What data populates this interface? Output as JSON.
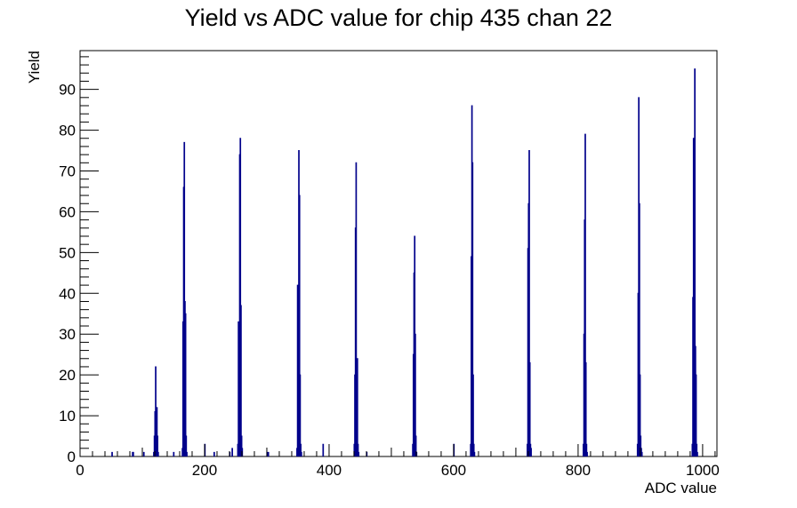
{
  "chart_data": {
    "type": "histogram",
    "title": "Yield vs ADC value for chip 435 chan 22",
    "xlabel": "ADC value",
    "ylabel": "Yield",
    "xlim": [
      0,
      1023
    ],
    "ylim": [
      0,
      99.5
    ],
    "x_ticks": [
      0,
      200,
      400,
      600,
      800,
      1000
    ],
    "y_ticks": [
      0,
      10,
      20,
      30,
      40,
      50,
      60,
      70,
      80,
      90
    ],
    "x_tick_labels": [
      "0",
      "200",
      "400",
      "600",
      "800",
      "1000"
    ],
    "y_tick_labels": [
      "0",
      "10",
      "20",
      "30",
      "40",
      "50",
      "60",
      "70",
      "80",
      "90"
    ],
    "bin_width": 1,
    "line_color": "#00008b",
    "grid": false,
    "legend": "none",
    "bins": [
      {
        "x": 51,
        "y": 1
      },
      {
        "x": 84,
        "y": 1
      },
      {
        "x": 85,
        "y": 1
      },
      {
        "x": 102,
        "y": 1
      },
      {
        "x": 118,
        "y": 1
      },
      {
        "x": 119,
        "y": 5
      },
      {
        "x": 120,
        "y": 11
      },
      {
        "x": 121,
        "y": 22
      },
      {
        "x": 122,
        "y": 8
      },
      {
        "x": 123,
        "y": 12
      },
      {
        "x": 124,
        "y": 5
      },
      {
        "x": 125,
        "y": 1
      },
      {
        "x": 150,
        "y": 1
      },
      {
        "x": 164,
        "y": 2
      },
      {
        "x": 165,
        "y": 33
      },
      {
        "x": 166,
        "y": 66
      },
      {
        "x": 167,
        "y": 77
      },
      {
        "x": 168,
        "y": 38
      },
      {
        "x": 169,
        "y": 35
      },
      {
        "x": 170,
        "y": 5
      },
      {
        "x": 171,
        "y": 1
      },
      {
        "x": 200,
        "y": 3
      },
      {
        "x": 215,
        "y": 1
      },
      {
        "x": 240,
        "y": 1
      },
      {
        "x": 244,
        "y": 2
      },
      {
        "x": 253,
        "y": 3
      },
      {
        "x": 254,
        "y": 33
      },
      {
        "x": 255,
        "y": 32
      },
      {
        "x": 256,
        "y": 74
      },
      {
        "x": 257,
        "y": 78
      },
      {
        "x": 258,
        "y": 37
      },
      {
        "x": 259,
        "y": 5
      },
      {
        "x": 260,
        "y": 2
      },
      {
        "x": 300,
        "y": 1
      },
      {
        "x": 302,
        "y": 1
      },
      {
        "x": 348,
        "y": 2
      },
      {
        "x": 349,
        "y": 42
      },
      {
        "x": 350,
        "y": 24
      },
      {
        "x": 351,
        "y": 75
      },
      {
        "x": 352,
        "y": 64
      },
      {
        "x": 353,
        "y": 20
      },
      {
        "x": 354,
        "y": 3
      },
      {
        "x": 355,
        "y": 1
      },
      {
        "x": 390,
        "y": 3
      },
      {
        "x": 440,
        "y": 3
      },
      {
        "x": 441,
        "y": 20
      },
      {
        "x": 442,
        "y": 56
      },
      {
        "x": 443,
        "y": 72
      },
      {
        "x": 444,
        "y": 15
      },
      {
        "x": 445,
        "y": 24
      },
      {
        "x": 446,
        "y": 3
      },
      {
        "x": 447,
        "y": 1
      },
      {
        "x": 460,
        "y": 1
      },
      {
        "x": 534,
        "y": 3
      },
      {
        "x": 535,
        "y": 25
      },
      {
        "x": 536,
        "y": 45
      },
      {
        "x": 537,
        "y": 54
      },
      {
        "x": 538,
        "y": 30
      },
      {
        "x": 539,
        "y": 5
      },
      {
        "x": 540,
        "y": 1
      },
      {
        "x": 600,
        "y": 3
      },
      {
        "x": 627,
        "y": 3
      },
      {
        "x": 628,
        "y": 49
      },
      {
        "x": 629,
        "y": 86
      },
      {
        "x": 630,
        "y": 72
      },
      {
        "x": 631,
        "y": 20
      },
      {
        "x": 632,
        "y": 3
      },
      {
        "x": 633,
        "y": 1
      },
      {
        "x": 718,
        "y": 3
      },
      {
        "x": 719,
        "y": 51
      },
      {
        "x": 720,
        "y": 62
      },
      {
        "x": 721,
        "y": 75
      },
      {
        "x": 722,
        "y": 23
      },
      {
        "x": 723,
        "y": 3
      },
      {
        "x": 724,
        "y": 2
      },
      {
        "x": 808,
        "y": 3
      },
      {
        "x": 809,
        "y": 30
      },
      {
        "x": 810,
        "y": 58
      },
      {
        "x": 811,
        "y": 79
      },
      {
        "x": 812,
        "y": 23
      },
      {
        "x": 813,
        "y": 3
      },
      {
        "x": 814,
        "y": 1
      },
      {
        "x": 895,
        "y": 3
      },
      {
        "x": 896,
        "y": 40
      },
      {
        "x": 897,
        "y": 88
      },
      {
        "x": 898,
        "y": 62
      },
      {
        "x": 899,
        "y": 20
      },
      {
        "x": 900,
        "y": 5
      },
      {
        "x": 901,
        "y": 2
      },
      {
        "x": 902,
        "y": 1
      },
      {
        "x": 983,
        "y": 3
      },
      {
        "x": 984,
        "y": 39
      },
      {
        "x": 985,
        "y": 78
      },
      {
        "x": 986,
        "y": 10
      },
      {
        "x": 987,
        "y": 95
      },
      {
        "x": 988,
        "y": 27
      },
      {
        "x": 989,
        "y": 20
      },
      {
        "x": 990,
        "y": 3
      },
      {
        "x": 991,
        "y": 1
      }
    ]
  }
}
